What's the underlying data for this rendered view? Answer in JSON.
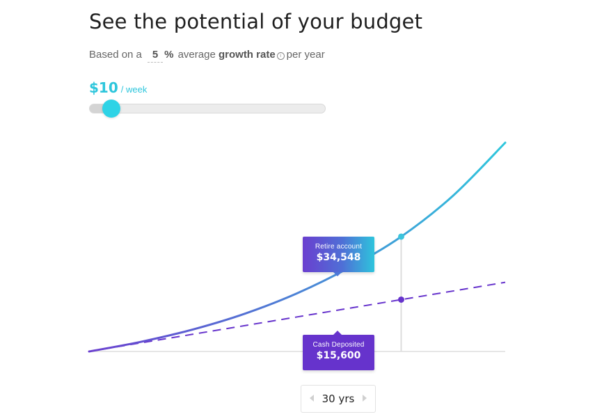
{
  "header": {
    "title": "See the potential of your budget"
  },
  "subtitle": {
    "prefix": "Based on a",
    "rate_value": "5",
    "rate_unit": "%",
    "middle": "average",
    "emphasis": "growth rate",
    "suffix": "per year"
  },
  "budget": {
    "amount": "$10",
    "unit": "/ week",
    "slider_fraction": 0.09
  },
  "tooltips": {
    "retire_label": "Retire account",
    "retire_value": "$34,548",
    "cash_label": "Cash Deposited",
    "cash_value": "$15,600"
  },
  "years": {
    "label": "30 yrs"
  },
  "chart_data": {
    "type": "line",
    "x": [
      0,
      5,
      10,
      15,
      20,
      25,
      30,
      35,
      40
    ],
    "series": [
      {
        "name": "Retire account",
        "values": [
          0,
          2920,
          6640,
          11400,
          17500,
          25200,
          34548,
          46900,
          62800
        ],
        "color": "#2ec6dc",
        "style": "solid"
      },
      {
        "name": "Cash Deposited",
        "values": [
          0,
          2600,
          5200,
          7800,
          10400,
          13000,
          15600,
          18200,
          20800
        ],
        "color": "#6633cc",
        "style": "dashed"
      }
    ],
    "highlight_x": 30,
    "xlim": [
      0,
      40
    ],
    "ylim": [
      0,
      62800
    ],
    "colors": {
      "growth_start": "#6a3fcf",
      "growth_end": "#2ec6dc",
      "deposit": "#6633cc",
      "baseline": "#e6e6e6",
      "marker_line": "#dddddd"
    }
  }
}
